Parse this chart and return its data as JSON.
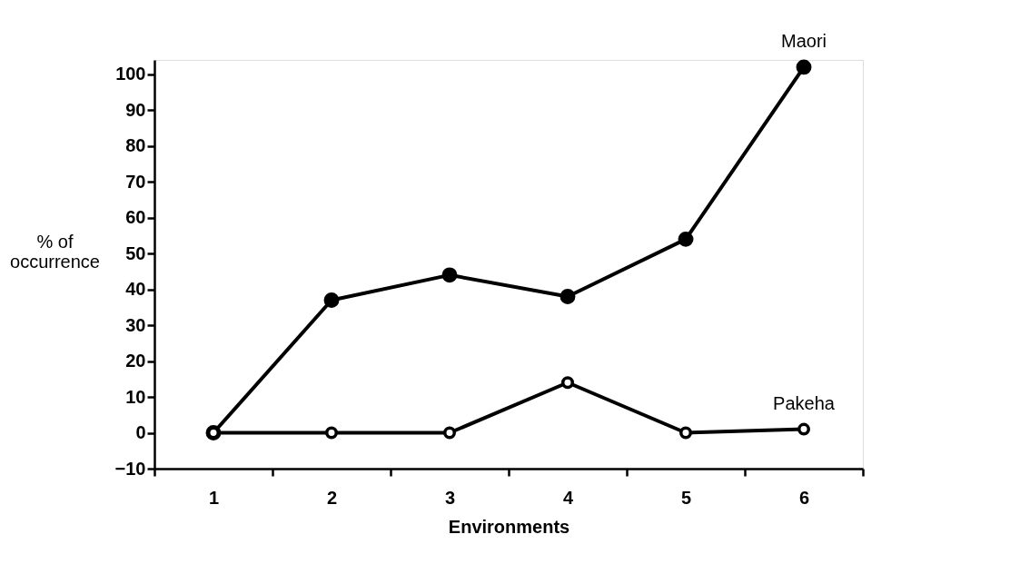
{
  "chart_data": {
    "type": "line",
    "xlabel": "Environments",
    "ylabel": "% of occurrence",
    "categories": [
      "1",
      "2",
      "3",
      "4",
      "5",
      "6"
    ],
    "series": [
      {
        "name": "Maori",
        "color": "#000000",
        "values": [
          0,
          37,
          44,
          38,
          54,
          102
        ]
      },
      {
        "name": "Pakeha",
        "color": "#000000",
        "values": [
          0,
          0,
          0,
          14,
          0,
          1
        ]
      }
    ],
    "ylim": [
      -10,
      104
    ],
    "yticks": [
      -10,
      0,
      10,
      20,
      30,
      40,
      50,
      60,
      70,
      80,
      90,
      100
    ],
    "grid": false,
    "legend": false,
    "marker": "circle",
    "line_style": "solid"
  }
}
